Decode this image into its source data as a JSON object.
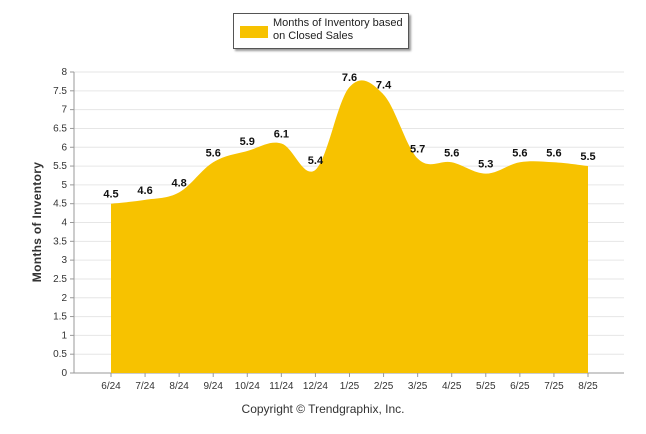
{
  "legend": {
    "label": "Months of Inventory based on Closed Sales"
  },
  "footer": {
    "copyright": "Copyright © Trendgraphix, Inc."
  },
  "colors": {
    "area": "#f7c200",
    "grid": "#e6e6e6",
    "axis": "#999999"
  },
  "chart_data": {
    "type": "area",
    "categories": [
      "6/24",
      "7/24",
      "8/24",
      "9/24",
      "10/24",
      "11/24",
      "12/24",
      "1/25",
      "2/25",
      "3/25",
      "4/25",
      "5/25",
      "6/25",
      "7/25",
      "8/25"
    ],
    "series": [
      {
        "name": "Months of Inventory based on Closed Sales",
        "values": [
          4.5,
          4.6,
          4.8,
          5.6,
          5.9,
          6.1,
          5.4,
          7.6,
          7.4,
          5.7,
          5.6,
          5.3,
          5.6,
          5.6,
          5.5
        ]
      }
    ],
    "data_labels": [
      "4.5",
      "4.6",
      "4.8",
      "5.6",
      "5.9",
      "6.1",
      "5.4",
      "7.6",
      "7.4",
      "5.7",
      "5.6",
      "5.3",
      "5.6",
      "5.6",
      "5.5"
    ],
    "yticks": [
      "0",
      "0.5",
      "1",
      "1.5",
      "2",
      "2.5",
      "3",
      "3.5",
      "4",
      "4.5",
      "5",
      "5.5",
      "6",
      "6.5",
      "7",
      "7.5",
      "8"
    ],
    "ylabel": "Months of Inventory",
    "ylim": [
      0,
      8
    ],
    "grid": true,
    "legend_position": "top-center"
  }
}
